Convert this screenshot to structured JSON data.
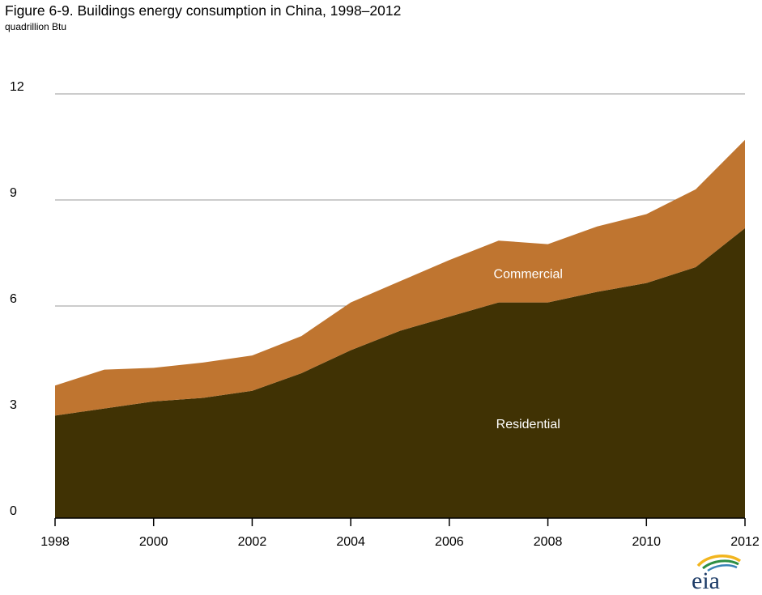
{
  "header": {
    "title": "Figure 6-9. Buildings energy consumption in China, 1998–2012",
    "subtitle": "quadrillion Btu"
  },
  "logo": {
    "text": "eia"
  },
  "colors": {
    "residential": "#403204",
    "commercial": "#bf7530",
    "grid": "#999999",
    "label_on_area": "#ffffff"
  },
  "chart_data": {
    "type": "area",
    "stacked": true,
    "title": "Figure 6-9. Buildings energy consumption in China, 1998–2012",
    "ylabel": "quadrillion Btu",
    "xlabel": "",
    "x": [
      1998,
      1999,
      2000,
      2001,
      2002,
      2003,
      2004,
      2005,
      2006,
      2007,
      2008,
      2009,
      2010,
      2011,
      2012
    ],
    "xlim": [
      1998,
      2012
    ],
    "ylim": [
      0,
      12
    ],
    "xticks": [
      "1998",
      "2000",
      "2002",
      "2004",
      "2006",
      "2008",
      "2010",
      "2012"
    ],
    "yticks": [
      "0",
      "3",
      "6",
      "9",
      "12"
    ],
    "grid": true,
    "series": [
      {
        "name": "Residential",
        "color": "#403204",
        "values": [
          2.9,
          3.1,
          3.3,
          3.4,
          3.6,
          4.1,
          4.75,
          5.3,
          5.7,
          6.1,
          6.1,
          6.4,
          6.65,
          7.1,
          8.2
        ]
      },
      {
        "name": "Commercial",
        "color": "#bf7530",
        "values": [
          0.85,
          1.1,
          0.95,
          1.0,
          1.0,
          1.05,
          1.35,
          1.4,
          1.6,
          1.75,
          1.65,
          1.85,
          1.95,
          2.2,
          2.5
        ]
      }
    ]
  }
}
